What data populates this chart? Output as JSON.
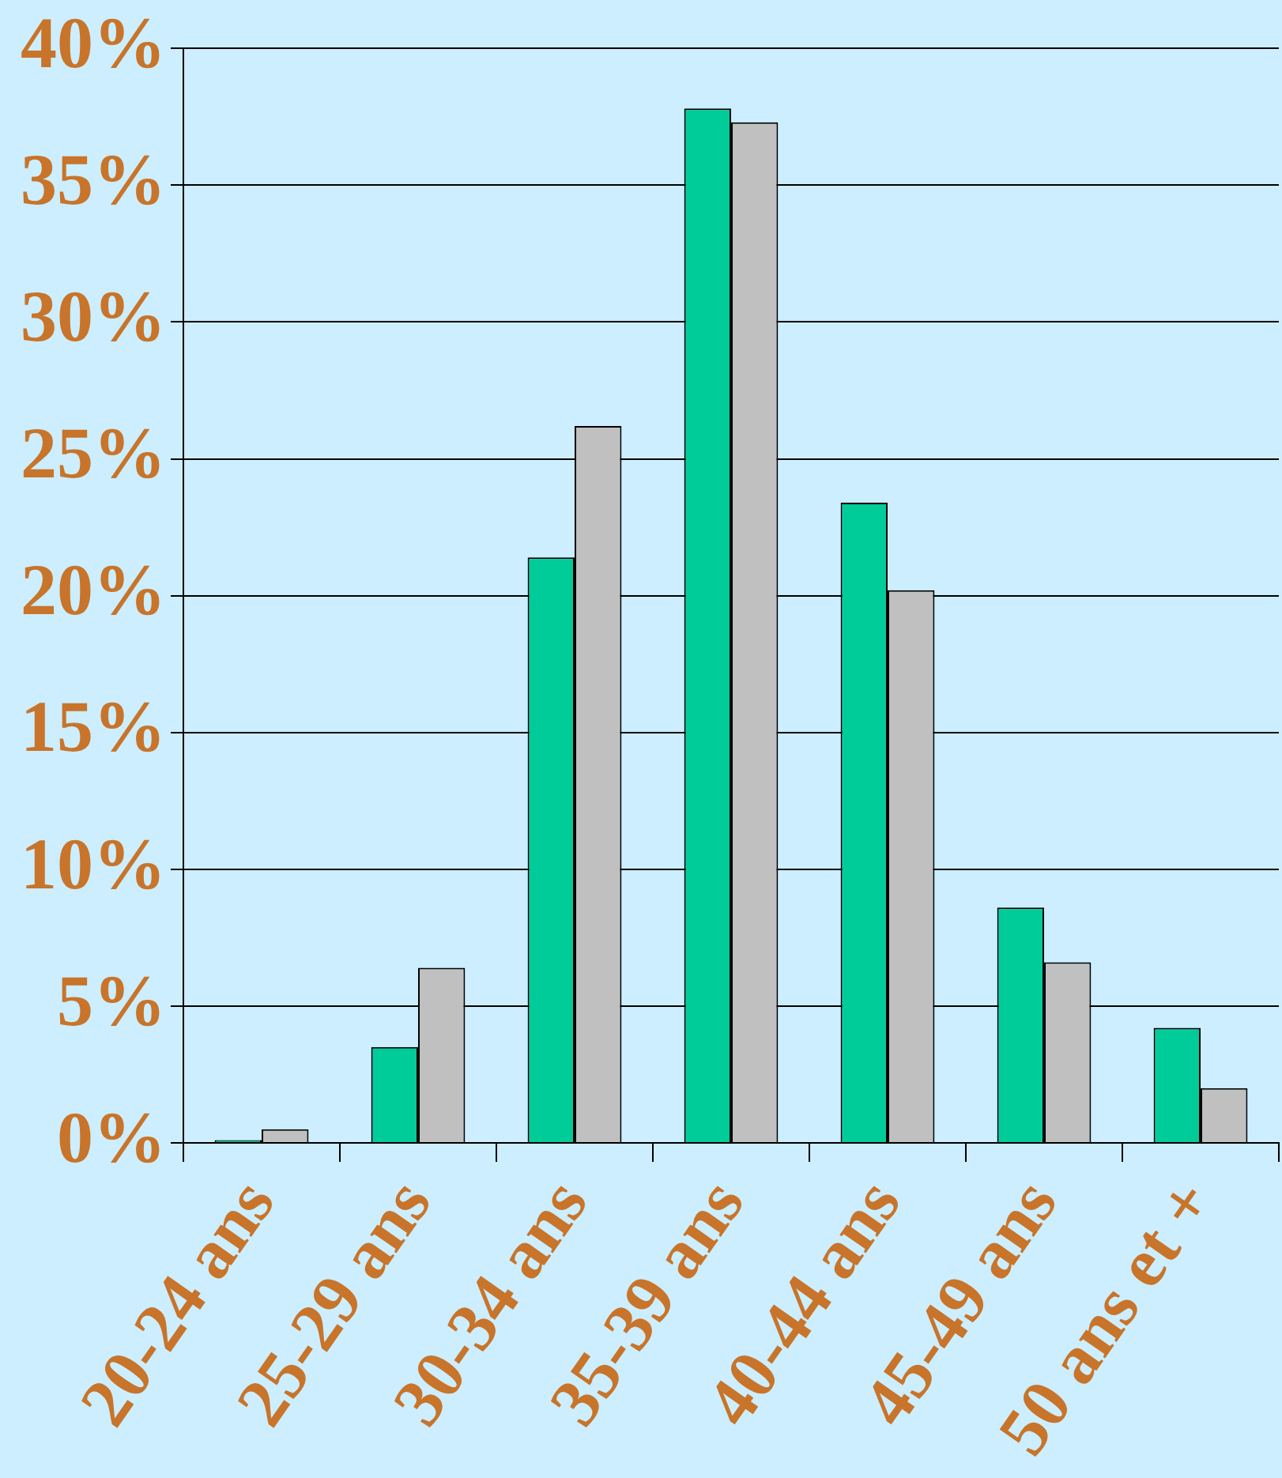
{
  "chart_data": {
    "type": "bar",
    "categories": [
      "20-24 ans",
      "25-29 ans",
      "30-34 ans",
      "35-39 ans",
      "40-44 ans",
      "45-49 ans",
      "50 ans et +"
    ],
    "series": [
      {
        "color": "#00cc99",
        "values": [
          0.1,
          3.5,
          21.4,
          37.8,
          23.4,
          8.6,
          4.2
        ]
      },
      {
        "color": "#c0c0c0",
        "values": [
          0.5,
          6.4,
          26.2,
          37.3,
          20.2,
          6.6,
          2.0
        ]
      }
    ],
    "ylim": [
      0,
      40
    ],
    "yticks": [
      {
        "value": 0,
        "label": "0%"
      },
      {
        "value": 5,
        "label": "5%"
      },
      {
        "value": 10,
        "label": "10%"
      },
      {
        "value": 15,
        "label": "15%"
      },
      {
        "value": 20,
        "label": "20%"
      },
      {
        "value": 25,
        "label": "25%"
      },
      {
        "value": 30,
        "label": "30%"
      },
      {
        "value": 35,
        "label": "35%"
      },
      {
        "value": 40,
        "label": "40%"
      }
    ],
    "grid": "y",
    "legend": false
  }
}
